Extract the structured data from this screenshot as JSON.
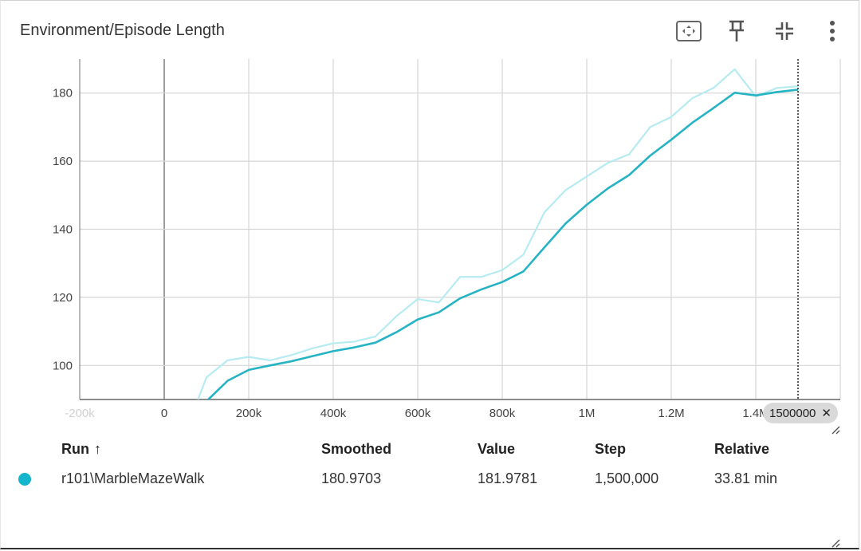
{
  "card": {
    "title": "Environment/Episode Length",
    "toolbar": [
      {
        "name": "fit-domain-icon"
      },
      {
        "name": "pin-icon"
      },
      {
        "name": "collapse-icon"
      },
      {
        "name": "more-vert-icon"
      }
    ]
  },
  "colors": {
    "smoothed": "#26b3c4",
    "raw": "#b5ebf1",
    "grid": "#d6d6d6",
    "run_dot": "#12b5cb"
  },
  "chart_data": {
    "type": "line",
    "title": "Environment/Episode Length",
    "xlabel": "",
    "ylabel": "",
    "xlim": [
      -200000,
      1600000
    ],
    "ylim": [
      90,
      190
    ],
    "x_ticks": [
      "-200k",
      "0",
      "200k",
      "400k",
      "600k",
      "800k",
      "1M",
      "1.2M",
      "1.4M"
    ],
    "y_ticks": [
      100,
      120,
      140,
      160,
      180
    ],
    "grid": true,
    "cursor_step": 1500000,
    "cursor_label": "1500000",
    "series": [
      {
        "name": "",
        "role": "raw",
        "x": [
          80000,
          100000,
          150000,
          200000,
          250000,
          300000,
          350000,
          400000,
          450000,
          500000,
          550000,
          600000,
          650000,
          700000,
          750000,
          800000,
          850000,
          900000,
          950000,
          1000000,
          1050000,
          1100000,
          1150000,
          1200000,
          1250000,
          1300000,
          1350000,
          1400000,
          1450000,
          1500000
        ],
        "y": [
          90,
          96.5,
          101.5,
          102.5,
          101.5,
          103,
          105,
          106.5,
          107,
          108.5,
          114.5,
          119.5,
          118.5,
          126,
          126,
          128,
          132.5,
          145,
          151.5,
          155.5,
          159.5,
          162,
          170,
          173,
          178.5,
          181.5,
          187,
          179,
          181.5,
          182
        ]
      },
      {
        "name": "",
        "role": "smoothed",
        "x": [
          100000,
          150000,
          200000,
          250000,
          300000,
          350000,
          400000,
          450000,
          500000,
          550000,
          600000,
          650000,
          700000,
          750000,
          800000,
          850000,
          900000,
          950000,
          1000000,
          1050000,
          1100000,
          1150000,
          1200000,
          1250000,
          1300000,
          1350000,
          1400000,
          1450000,
          1500000
        ],
        "y": [
          89.5,
          95.5,
          98.7,
          100,
          101.2,
          102.7,
          104.2,
          105.3,
          106.7,
          109.8,
          113.5,
          115.6,
          119.7,
          122.3,
          124.5,
          127.6,
          134.7,
          141.7,
          147.2,
          152,
          155.9,
          161.6,
          166.3,
          171.3,
          175.6,
          180.1,
          179.3,
          180.3,
          181
        ]
      }
    ]
  },
  "table": {
    "headers": {
      "run": "Run",
      "sort_indicator": "↑",
      "smoothed": "Smoothed",
      "value": "Value",
      "step": "Step",
      "relative": "Relative"
    },
    "rows": [
      {
        "run": "r101\\MarbleMazeWalk",
        "smoothed": "180.9703",
        "value": "181.9781",
        "step": "1,500,000",
        "relative": "33.81 min"
      }
    ]
  }
}
